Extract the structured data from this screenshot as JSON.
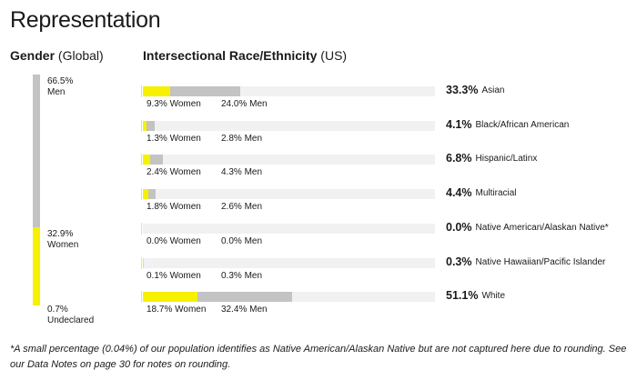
{
  "title": "Representation",
  "gender_header": {
    "bold": "Gender",
    "normal": "(Global)"
  },
  "race_header": {
    "bold": "Intersectional Race/Ethnicity",
    "normal": "(US)"
  },
  "footnote": "*A small percentage (0.04%) of our population identifies as Native American/Alaskan Native but are not captured here due to rounding. See our Data Notes on page 30 for notes on rounding.",
  "colors": {
    "women": "#f7f000",
    "men": "#c3c3c3",
    "track": "#f1f1f1",
    "undeclared": "#f7f000"
  },
  "chart_data": [
    {
      "type": "bar",
      "title": "Gender (Global)",
      "orientation": "vertical-stacked",
      "series": [
        {
          "name": "Men",
          "value": 66.5,
          "pct_label": "66.5%",
          "label": "Men"
        },
        {
          "name": "Women",
          "value": 32.9,
          "pct_label": "32.9%",
          "label": "Women"
        },
        {
          "name": "Undeclared",
          "value": 0.7,
          "pct_label": "0.7%",
          "label": "Undeclared"
        }
      ]
    },
    {
      "type": "bar",
      "title": "Intersectional Race/Ethnicity (US)",
      "orientation": "horizontal-stacked",
      "categories": [
        {
          "name": "Asian",
          "total": 33.3,
          "total_label": "33.3%",
          "women": 9.3,
          "women_label": "9.3% Women",
          "men": 24.0,
          "men_label": "24.0% Men"
        },
        {
          "name": "Black/African American",
          "total": 4.1,
          "total_label": "4.1%",
          "women": 1.3,
          "women_label": "1.3% Women",
          "men": 2.8,
          "men_label": "2.8% Men"
        },
        {
          "name": "Hispanic/Latinx",
          "total": 6.8,
          "total_label": "6.8%",
          "women": 2.4,
          "women_label": "2.4% Women",
          "men": 4.3,
          "men_label": "4.3% Men"
        },
        {
          "name": "Multiracial",
          "total": 4.4,
          "total_label": "4.4%",
          "women": 1.8,
          "women_label": "1.8% Women",
          "men": 2.6,
          "men_label": "2.6% Men"
        },
        {
          "name": "Native American/Alaskan Native*",
          "total": 0.0,
          "total_label": "0.0%",
          "women": 0.0,
          "women_label": "0.0% Women",
          "men": 0.0,
          "men_label": "0.0% Men"
        },
        {
          "name": "Native Hawaiian/Pacific Islander",
          "total": 0.3,
          "total_label": "0.3%",
          "women": 0.1,
          "women_label": "0.1% Women",
          "men": 0.3,
          "men_label": "0.3% Men"
        },
        {
          "name": "White",
          "total": 51.1,
          "total_label": "51.1%",
          "women": 18.7,
          "women_label": "18.7% Women",
          "men": 32.4,
          "men_label": "32.4% Men"
        }
      ],
      "scale_max": 100
    }
  ]
}
